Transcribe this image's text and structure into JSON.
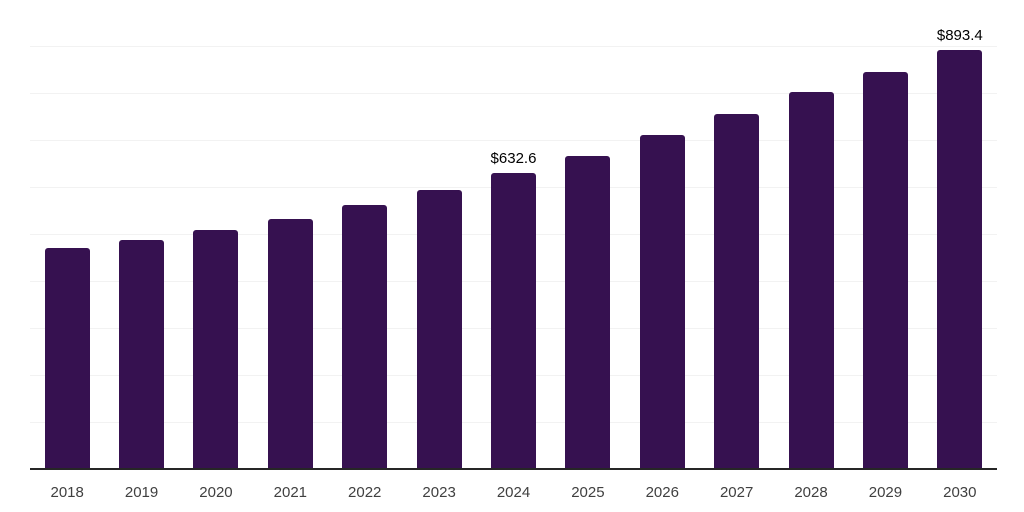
{
  "chart_data": {
    "type": "bar",
    "title": "",
    "xlabel": "",
    "ylabel": "",
    "categories": [
      "2018",
      "2019",
      "2020",
      "2021",
      "2022",
      "2023",
      "2024",
      "2025",
      "2026",
      "2027",
      "2028",
      "2029",
      "2030"
    ],
    "values": [
      472,
      489.5,
      510.5,
      534,
      564,
      596,
      632.6,
      668,
      712,
      756.5,
      804.5,
      847,
      893.4
    ],
    "bar_labels": [
      "",
      "",
      "",
      "",
      "",
      "",
      "$632.6",
      "",
      "",
      "",
      "",
      "",
      "$893.4"
    ],
    "ylim": [
      0,
      1000
    ],
    "gridline_step": 100,
    "grid": "horizontal-only",
    "legend_position": "none",
    "colors": {
      "bar": "#361150",
      "gridline": "#f2f2f2",
      "axis_line": "#262626",
      "tick_label": "#404040",
      "data_label": "#000000",
      "background": "#ffffff"
    }
  }
}
